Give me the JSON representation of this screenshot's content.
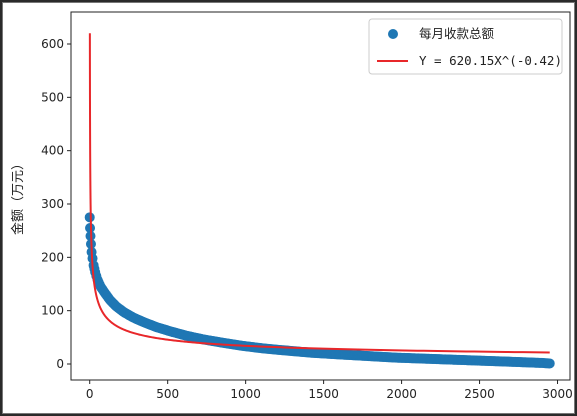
{
  "chart_data": {
    "type": "scatter",
    "title": "",
    "xlabel": "",
    "ylabel": "金额（万元）",
    "xlim": [
      -120,
      3080
    ],
    "ylim": [
      -30,
      660
    ],
    "xticks": [
      0,
      500,
      1000,
      1500,
      2000,
      2500,
      3000
    ],
    "yticks": [
      0,
      100,
      200,
      300,
      400,
      500,
      600
    ],
    "grid": false,
    "legend_position": "top-right",
    "series": [
      {
        "name": "每月收款总额",
        "kind": "scatter",
        "color": "#1f77b4",
        "x": [
          0,
          2,
          5,
          8,
          12,
          18,
          25,
          35,
          50,
          70,
          100,
          130,
          170,
          220,
          280,
          350,
          430,
          520,
          620,
          730,
          850,
          980,
          1120,
          1270,
          1430,
          1600,
          1780,
          1960,
          2150,
          2340,
          2530,
          2720,
          2900,
          2950
        ],
        "y": [
          275,
          255,
          240,
          225,
          210,
          198,
          185,
          172,
          158,
          145,
          132,
          120,
          108,
          97,
          87,
          78,
          69,
          61,
          53,
          46,
          40,
          34,
          29,
          25,
          21,
          18,
          15,
          12,
          10,
          8,
          6,
          4,
          2,
          1
        ]
      },
      {
        "name": "Y = 620.15X^(-0.42)",
        "kind": "line",
        "color": "#e8272a",
        "a": 620.15,
        "b": -0.42,
        "x_range": [
          1,
          2950
        ]
      }
    ]
  }
}
